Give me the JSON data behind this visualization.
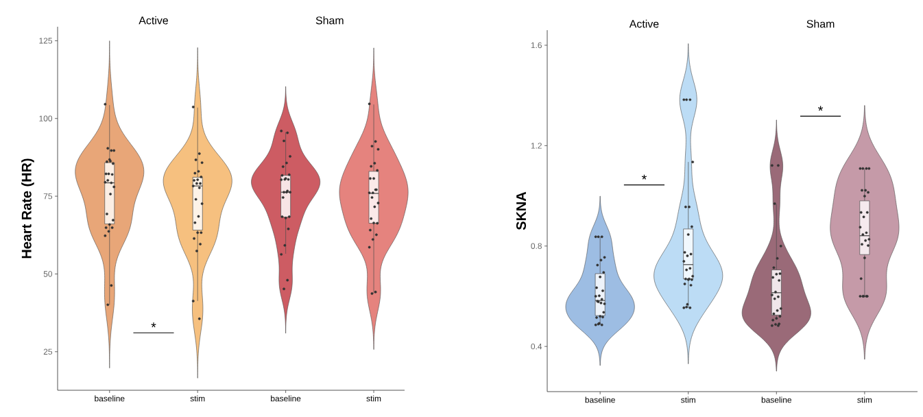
{
  "chart_data": [
    {
      "type": "box",
      "ylabel": "Heart Rate (HR)",
      "categories": [
        "baseline",
        "stim",
        "baseline",
        "stim"
      ],
      "colors": [
        "#fbeee4",
        "#fdf3e8",
        "#f7e4e5",
        "#fbe9e8"
      ],
      "ylim": [
        12.6,
        129.5
      ],
      "yticks": [
        25,
        50,
        75,
        100,
        125
      ],
      "marker": "circle",
      "annotations": [
        "Active",
        "Sham",
        "*"
      ],
      "boxes": [
        {
          "low": 40.1,
          "q1": 66.1,
          "median": 79.3,
          "q3": 85.8,
          "high": 104.3,
          "outliers": [
            104.6,
            89.7,
            90.4,
            89.7,
            86.3,
            86.1,
            85.5,
            86.8,
            82.2,
            82.0,
            82.2,
            79.5,
            79.3,
            80.1,
            78.0,
            75.7,
            69.3,
            67.3,
            65.9,
            64.9,
            64.9,
            63.7,
            62.3,
            46.3,
            40.1
          ]
        },
        {
          "low": 41.3,
          "q1": 64.1,
          "median": 78.3,
          "q3": 81.1,
          "high": 103.5,
          "outliers": [
            103.7,
            88.7,
            86.7,
            85.8,
            83.0,
            82.4,
            81.2,
            80.3,
            80.1,
            79.1,
            79.1,
            78.3,
            77.7,
            74.0,
            72.6,
            68.5,
            66.5,
            63.3,
            63.3,
            61.4,
            59.6,
            57.4,
            41.3,
            35.6
          ]
        },
        {
          "low": 56.5,
          "q1": 68.3,
          "median": 76.3,
          "q3": 81.7,
          "high": 95.6,
          "outliers": [
            96.0,
            95.4,
            92.8,
            87.8,
            85.7,
            84.5,
            81.9,
            80.7,
            81.7,
            80.4,
            80.4,
            80.3,
            76.7,
            76.3,
            76.3,
            76.3,
            74.6,
            68.4,
            68.0,
            68.4,
            64.5,
            59.2,
            56.3,
            48.0,
            45.2
          ]
        },
        {
          "low": 43.7,
          "q1": 66.3,
          "median": 75.9,
          "q3": 83.0,
          "high": 104.5,
          "outliers": [
            104.7,
            92.6,
            91.1,
            90.1,
            85.6,
            84.6,
            83.3,
            80.7,
            80.7,
            77.1,
            76.1,
            76.1,
            77.1,
            74.6,
            72.8,
            71.6,
            67.8,
            66.3,
            66.4,
            64.1,
            62.6,
            61.1,
            58.6,
            44.2,
            43.7
          ]
        }
      ]
    },
    {
      "type": "box",
      "ylabel": "SKNA",
      "categories": [
        "baseline",
        "stim",
        "baseline",
        "stim"
      ],
      "colors": [
        "#eef3fa",
        "#f1f8fd",
        "#f0e6ea",
        "#f5eaee"
      ],
      "ylim": [
        0.22,
        1.66
      ],
      "yticks": [
        0.4,
        0.8,
        1.2,
        1.6
      ],
      "marker": "circle",
      "annotations": [
        "Active",
        "Sham",
        "*",
        "*"
      ],
      "boxes": [
        {
          "low": 0.486,
          "q1": 0.523,
          "median": 0.583,
          "q3": 0.69,
          "high": 0.837,
          "outliers": [
            0.837,
            0.837,
            0.837,
            0.755,
            0.744,
            0.724,
            0.695,
            0.677,
            0.634,
            0.622,
            0.602,
            0.6,
            0.588,
            0.578,
            0.57,
            0.573,
            0.58,
            0.536,
            0.52,
            0.515,
            0.517,
            0.492,
            0.486,
            0.486,
            0.489
          ]
        },
        {
          "low": 0.554,
          "q1": 0.669,
          "median": 0.726,
          "q3": 0.868,
          "high": 1.135,
          "outliers": [
            1.383,
            1.383,
            1.383,
            1.135,
            0.956,
            0.956,
            0.877,
            0.846,
            0.775,
            0.768,
            0.761,
            0.739,
            0.711,
            0.705,
            0.68,
            0.669,
            0.669,
            0.666,
            0.666,
            0.649,
            0.644,
            0.568,
            0.554,
            0.554,
            0.557
          ]
        },
        {
          "low": 0.515,
          "q1": 0.525,
          "median": 0.614,
          "q3": 0.705,
          "high": 0.967,
          "outliers": [
            1.121,
            1.121,
            0.969,
            0.8,
            0.751,
            0.714,
            0.69,
            0.688,
            0.675,
            0.663,
            0.617,
            0.605,
            0.598,
            0.59,
            0.551,
            0.543,
            0.53,
            0.52,
            0.512,
            0.505,
            0.49,
            0.488,
            0.483,
            0.483
          ]
        },
        {
          "low": 0.6,
          "q1": 0.766,
          "median": 0.841,
          "q3": 0.98,
          "high": 1.109,
          "outliers": [
            1.109,
            1.109,
            1.109,
            1.109,
            1.022,
            1.022,
            1.014,
            0.999,
            0.934,
            0.934,
            0.916,
            0.875,
            0.853,
            0.846,
            0.827,
            0.822,
            0.807,
            0.802,
            0.753,
            0.67,
            0.6,
            0.6,
            0.6,
            0.6,
            0.6
          ]
        }
      ]
    }
  ]
}
